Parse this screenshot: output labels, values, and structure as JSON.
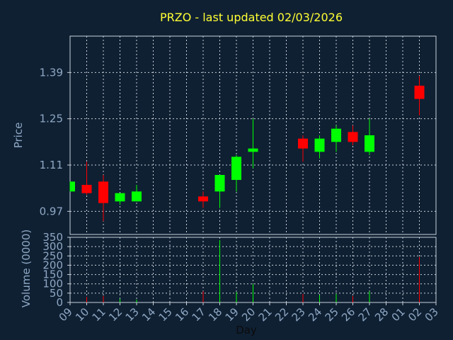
{
  "title": "PRZO - last updated 02/03/2026",
  "colors": {
    "background": "#0f2033",
    "title": "#ffff33",
    "text": "#8fa8c4",
    "up": "#00ff00",
    "down": "#ff0000",
    "grid": "#c8d0d8"
  },
  "chart_data": [
    {
      "type": "candlestick",
      "title": "PRZO - last updated 02/03/2026",
      "ylabel": "Price",
      "yticks": [
        0.97,
        1.11,
        1.25,
        1.39
      ],
      "ylim": [
        0.9,
        1.5
      ],
      "grid": true,
      "x_positions": [
        "09",
        "10",
        "11",
        "12",
        "13",
        "14",
        "15",
        "16",
        "17",
        "18",
        "19",
        "20",
        "21",
        "22",
        "23",
        "24",
        "25",
        "26",
        "27",
        "28",
        "01",
        "02",
        "03"
      ],
      "candles": [
        {
          "x": "09",
          "open": 1.03,
          "high": 1.06,
          "low": 1.03,
          "close": 1.06
        },
        {
          "x": "10",
          "open": 1.05,
          "high": 1.12,
          "low": 1.02,
          "close": 1.025
        },
        {
          "x": "11",
          "open": 1.06,
          "high": 1.08,
          "low": 0.94,
          "close": 0.995
        },
        {
          "x": "12",
          "open": 1.0,
          "high": 1.02,
          "low": 0.99,
          "close": 1.025
        },
        {
          "x": "13",
          "open": 1.0,
          "high": 1.05,
          "low": 1.0,
          "close": 1.03
        },
        {
          "x": "17",
          "open": 1.015,
          "high": 1.03,
          "low": 0.98,
          "close": 1.0
        },
        {
          "x": "18",
          "open": 1.03,
          "high": 1.08,
          "low": 0.98,
          "close": 1.08
        },
        {
          "x": "19",
          "open": 1.065,
          "high": 1.14,
          "low": 1.03,
          "close": 1.135
        },
        {
          "x": "20",
          "open": 1.15,
          "high": 1.25,
          "low": 1.1,
          "close": 1.16
        },
        {
          "x": "23",
          "open": 1.19,
          "high": 1.2,
          "low": 1.12,
          "close": 1.16
        },
        {
          "x": "24",
          "open": 1.15,
          "high": 1.2,
          "low": 1.13,
          "close": 1.19
        },
        {
          "x": "25",
          "open": 1.18,
          "high": 1.23,
          "low": 1.15,
          "close": 1.22
        },
        {
          "x": "26",
          "open": 1.21,
          "high": 1.23,
          "low": 1.17,
          "close": 1.18
        },
        {
          "x": "27",
          "open": 1.15,
          "high": 1.25,
          "low": 1.14,
          "close": 1.2
        },
        {
          "x": "02",
          "open": 1.35,
          "high": 1.38,
          "low": 1.26,
          "close": 1.31
        }
      ]
    },
    {
      "type": "bar",
      "ylabel": "Volume (0000)",
      "xlabel": "Day",
      "yticks": [
        0,
        50,
        100,
        150,
        200,
        250,
        300,
        350
      ],
      "ylim": [
        0,
        350
      ],
      "grid": true,
      "categories": [
        "10",
        "11",
        "12",
        "13",
        "17",
        "18",
        "19",
        "20",
        "23",
        "24",
        "25",
        "26",
        "27",
        "02"
      ],
      "values": [
        30,
        35,
        20,
        15,
        60,
        335,
        55,
        100,
        45,
        40,
        45,
        35,
        60,
        245
      ],
      "colors": [
        "down",
        "down",
        "up",
        "up",
        "down",
        "up",
        "up",
        "up",
        "down",
        "up",
        "up",
        "down",
        "up",
        "down"
      ]
    }
  ]
}
